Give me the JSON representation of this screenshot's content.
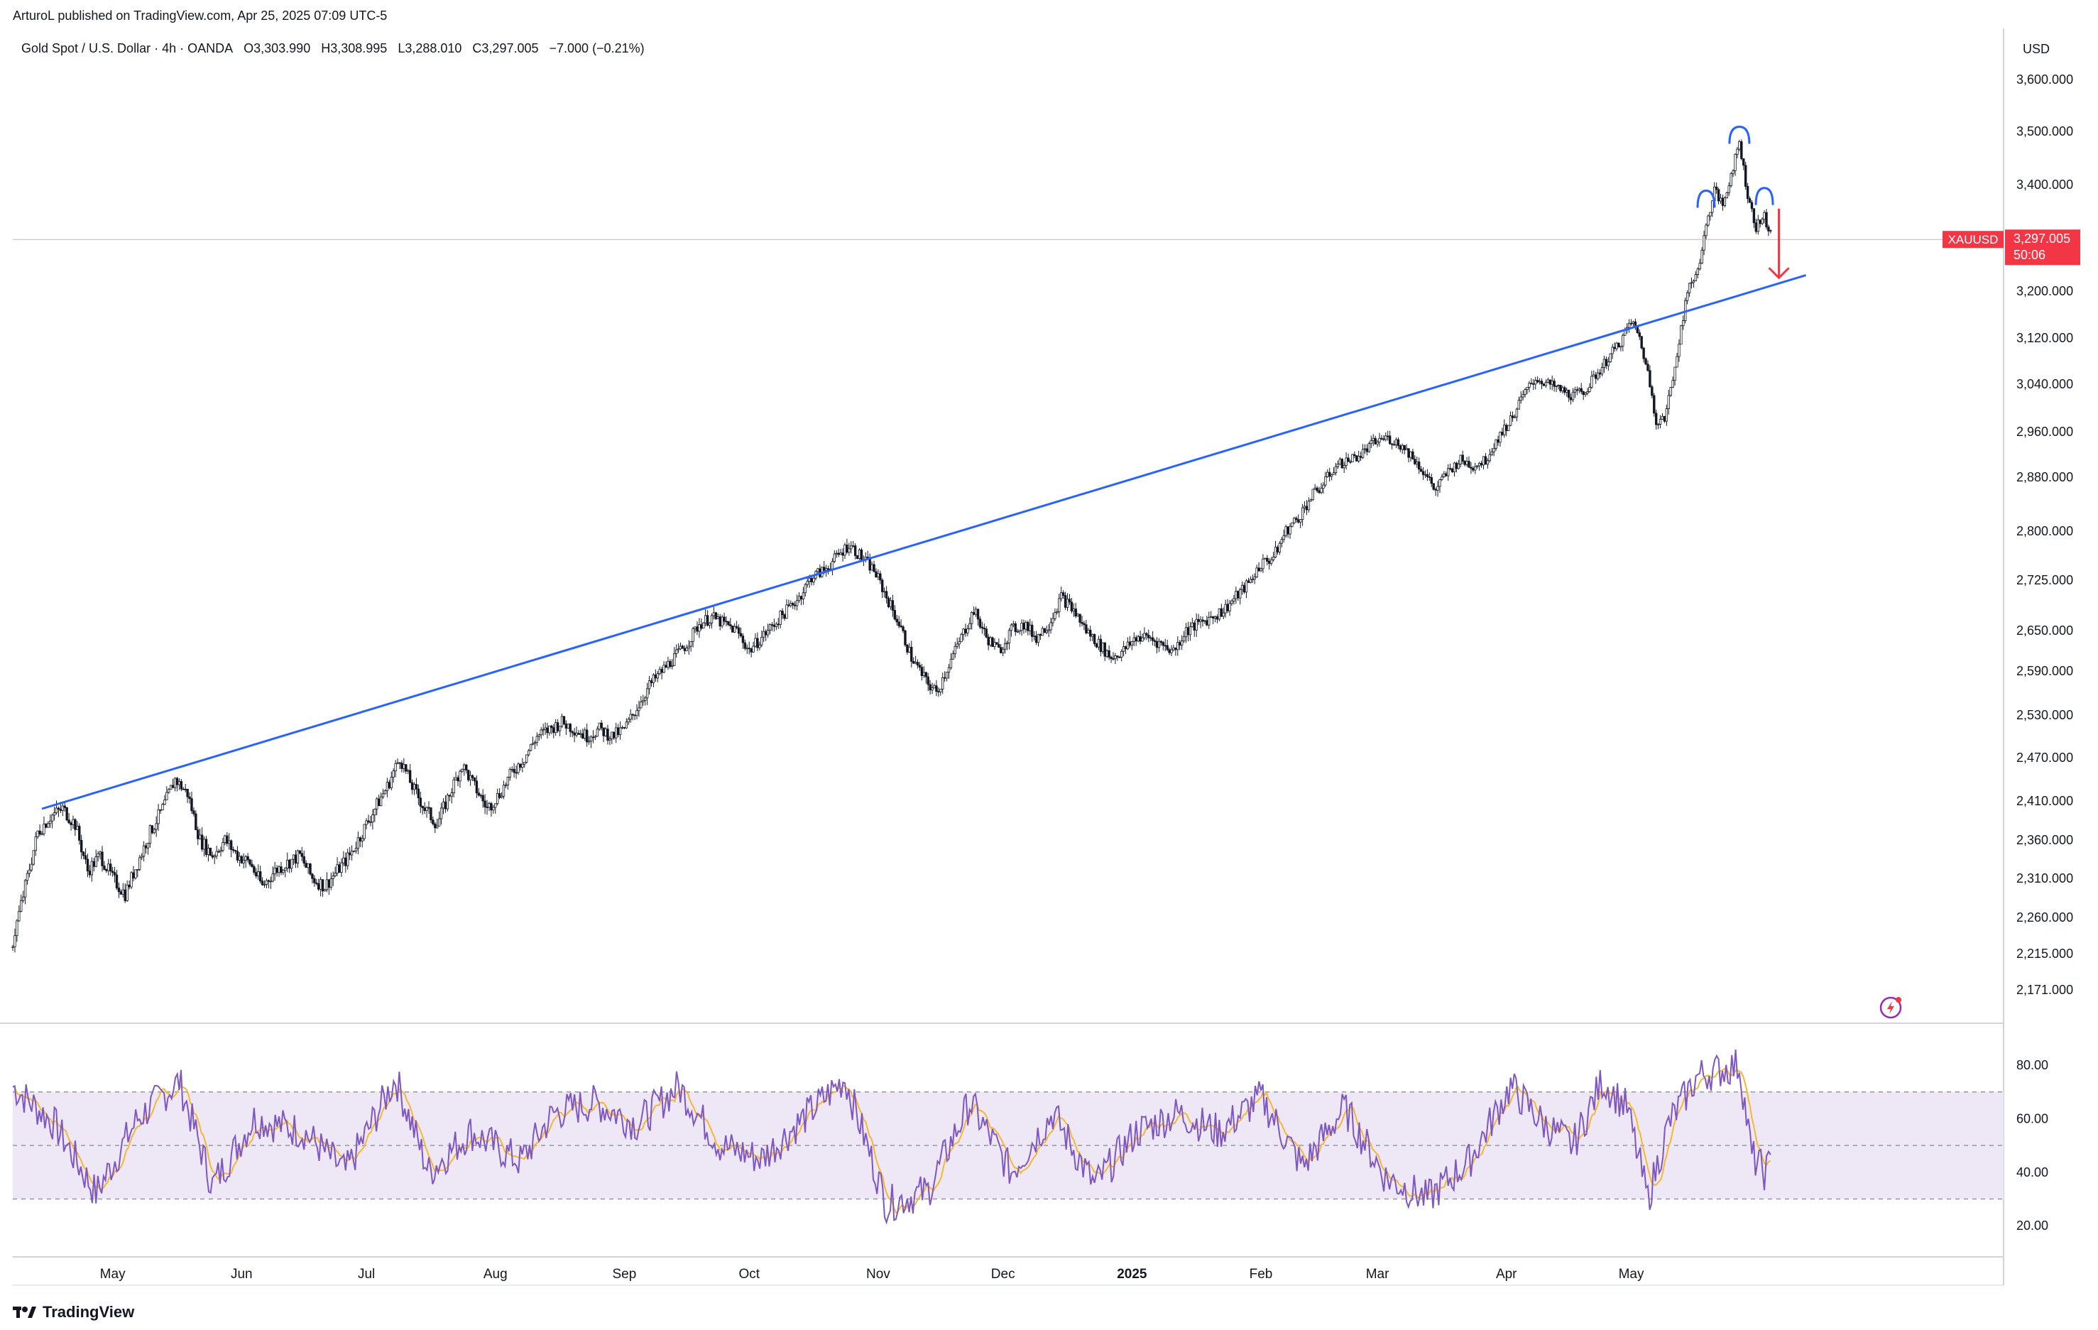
{
  "header": {
    "publisher": "ArturoL published on TradingView.com, Apr 25, 2025 07:09 UTC-5"
  },
  "legend": {
    "symbol": "Gold Spot / U.S. Dollar · 4h · OANDA",
    "open": "O3,303.990",
    "high": "H3,308.995",
    "low": "L3,288.010",
    "close": "C3,297.005",
    "change": "−7.000 (−0.21%)"
  },
  "price_axis": {
    "currency": "USD",
    "badge_symbol": "XAUUSD",
    "badge_price": "3,297.005",
    "badge_countdown": "50:06"
  },
  "footer": {
    "brand": "TradingView"
  },
  "colors": {
    "candle": "#131722",
    "trendline": "#2962ff",
    "rsi": "#7e57c2",
    "rsi_ma": "#f7b731",
    "rsi_band": "#ede7f6",
    "arrow": "#f23645",
    "badge": "#f23645",
    "arc": "#2962ff"
  },
  "chart_data": {
    "type": "candlestick",
    "title": "Gold Spot / U.S. Dollar · 4h · OANDA",
    "price_ticks": [
      3600,
      3500,
      3400,
      3200,
      3120,
      3040,
      2960,
      2880,
      2800,
      2725,
      2650,
      2590,
      2530,
      2470,
      2410,
      2360,
      2310,
      2260,
      2215,
      2171
    ],
    "price_tick_labels": [
      "3,600.000",
      "3,500.000",
      "3,400.000",
      "3,200.000",
      "3,120.000",
      "3,040.000",
      "2,960.000",
      "2,880.000",
      "2,800.000",
      "2,725.000",
      "2,650.000",
      "2,590.000",
      "2,530.000",
      "2,470.000",
      "2,410.000",
      "2,360.000",
      "2,310.000",
      "2,260.000",
      "2,215.000",
      "2,171.000"
    ],
    "x_labels": [
      "May",
      "Jun",
      "Jul",
      "Aug",
      "Sep",
      "Oct",
      "Nov",
      "Dec",
      "2025",
      "Feb",
      "Mar",
      "Apr",
      "May"
    ],
    "x_label_days": [
      24,
      55,
      85,
      116,
      147,
      177,
      208,
      238,
      269,
      300,
      328,
      359,
      389
    ],
    "price_path": [
      [
        0,
        2230
      ],
      [
        3,
        2300
      ],
      [
        6,
        2370
      ],
      [
        9,
        2390
      ],
      [
        12,
        2400
      ],
      [
        15,
        2380
      ],
      [
        18,
        2320
      ],
      [
        21,
        2340
      ],
      [
        24,
        2310
      ],
      [
        27,
        2290
      ],
      [
        30,
        2330
      ],
      [
        33,
        2370
      ],
      [
        36,
        2400
      ],
      [
        39,
        2440
      ],
      [
        42,
        2420
      ],
      [
        45,
        2360
      ],
      [
        48,
        2340
      ],
      [
        51,
        2360
      ],
      [
        54,
        2340
      ],
      [
        57,
        2330
      ],
      [
        60,
        2300
      ],
      [
        63,
        2320
      ],
      [
        66,
        2330
      ],
      [
        69,
        2340
      ],
      [
        72,
        2310
      ],
      [
        75,
        2300
      ],
      [
        78,
        2320
      ],
      [
        81,
        2340
      ],
      [
        84,
        2370
      ],
      [
        87,
        2400
      ],
      [
        90,
        2430
      ],
      [
        93,
        2470
      ],
      [
        96,
        2430
      ],
      [
        99,
        2400
      ],
      [
        102,
        2380
      ],
      [
        105,
        2420
      ],
      [
        108,
        2460
      ],
      [
        111,
        2430
      ],
      [
        114,
        2400
      ],
      [
        117,
        2420
      ],
      [
        120,
        2450
      ],
      [
        123,
        2470
      ],
      [
        126,
        2500
      ],
      [
        129,
        2510
      ],
      [
        132,
        2520
      ],
      [
        135,
        2510
      ],
      [
        138,
        2500
      ],
      [
        141,
        2510
      ],
      [
        144,
        2500
      ],
      [
        147,
        2510
      ],
      [
        150,
        2540
      ],
      [
        153,
        2570
      ],
      [
        156,
        2590
      ],
      [
        159,
        2610
      ],
      [
        162,
        2630
      ],
      [
        165,
        2660
      ],
      [
        168,
        2670
      ],
      [
        171,
        2660
      ],
      [
        174,
        2650
      ],
      [
        177,
        2620
      ],
      [
        180,
        2640
      ],
      [
        183,
        2660
      ],
      [
        186,
        2680
      ],
      [
        189,
        2700
      ],
      [
        192,
        2730
      ],
      [
        195,
        2740
      ],
      [
        198,
        2760
      ],
      [
        201,
        2780
      ],
      [
        204,
        2760
      ],
      [
        207,
        2740
      ],
      [
        210,
        2700
      ],
      [
        213,
        2660
      ],
      [
        216,
        2610
      ],
      [
        219,
        2580
      ],
      [
        222,
        2560
      ],
      [
        225,
        2600
      ],
      [
        228,
        2640
      ],
      [
        231,
        2680
      ],
      [
        234,
        2640
      ],
      [
        237,
        2620
      ],
      [
        240,
        2650
      ],
      [
        243,
        2660
      ],
      [
        246,
        2640
      ],
      [
        249,
        2660
      ],
      [
        252,
        2700
      ],
      [
        255,
        2680
      ],
      [
        258,
        2650
      ],
      [
        261,
        2630
      ],
      [
        264,
        2610
      ],
      [
        267,
        2620
      ],
      [
        270,
        2640
      ],
      [
        273,
        2640
      ],
      [
        276,
        2630
      ],
      [
        279,
        2620
      ],
      [
        282,
        2650
      ],
      [
        285,
        2660
      ],
      [
        288,
        2670
      ],
      [
        291,
        2680
      ],
      [
        294,
        2700
      ],
      [
        297,
        2720
      ],
      [
        300,
        2750
      ],
      [
        303,
        2760
      ],
      [
        306,
        2800
      ],
      [
        309,
        2820
      ],
      [
        312,
        2850
      ],
      [
        315,
        2870
      ],
      [
        318,
        2900
      ],
      [
        321,
        2910
      ],
      [
        324,
        2920
      ],
      [
        327,
        2940
      ],
      [
        330,
        2950
      ],
      [
        333,
        2940
      ],
      [
        336,
        2920
      ],
      [
        339,
        2890
      ],
      [
        342,
        2860
      ],
      [
        345,
        2890
      ],
      [
        348,
        2910
      ],
      [
        351,
        2900
      ],
      [
        354,
        2910
      ],
      [
        357,
        2950
      ],
      [
        360,
        2980
      ],
      [
        363,
        3020
      ],
      [
        366,
        3050
      ],
      [
        369,
        3040
      ],
      [
        372,
        3030
      ],
      [
        375,
        3020
      ],
      [
        378,
        3030
      ],
      [
        381,
        3060
      ],
      [
        384,
        3090
      ],
      [
        387,
        3120
      ],
      [
        389,
        3150
      ],
      [
        391,
        3120
      ],
      [
        393,
        3060
      ],
      [
        395,
        2980
      ],
      [
        397,
        2980
      ],
      [
        399,
        3050
      ],
      [
        401,
        3140
      ],
      [
        403,
        3210
      ],
      [
        405,
        3240
      ],
      [
        407,
        3320
      ],
      [
        409,
        3390
      ],
      [
        411,
        3360
      ],
      [
        413,
        3420
      ],
      [
        415,
        3480
      ],
      [
        417,
        3380
      ],
      [
        419,
        3320
      ],
      [
        421,
        3340
      ],
      [
        423,
        3297
      ]
    ],
    "trendline": {
      "from": [
        7,
        2400
      ],
      "to": [
        431,
        3230
      ]
    },
    "last_price": 3297.005,
    "annotations": [
      "head and shoulders arcs",
      "down arrow"
    ],
    "rsi": {
      "ticks": [
        80,
        60,
        40,
        20
      ],
      "tick_labels": [
        "80.00",
        "60.00",
        "40.00",
        "20.00"
      ],
      "upper_band": 70,
      "mid": 50,
      "lower_band": 30,
      "path": [
        [
          0,
          72
        ],
        [
          10,
          58
        ],
        [
          20,
          32
        ],
        [
          30,
          60
        ],
        [
          40,
          74
        ],
        [
          48,
          35
        ],
        [
          58,
          60
        ],
        [
          70,
          55
        ],
        [
          80,
          40
        ],
        [
          92,
          75
        ],
        [
          100,
          40
        ],
        [
          110,
          55
        ],
        [
          122,
          44
        ],
        [
          130,
          62
        ],
        [
          140,
          66
        ],
        [
          150,
          58
        ],
        [
          160,
          72
        ],
        [
          170,
          50
        ],
        [
          180,
          45
        ],
        [
          190,
          60
        ],
        [
          200,
          75
        ],
        [
          210,
          28
        ],
        [
          220,
          33
        ],
        [
          230,
          66
        ],
        [
          240,
          40
        ],
        [
          250,
          62
        ],
        [
          260,
          35
        ],
        [
          270,
          55
        ],
        [
          280,
          62
        ],
        [
          290,
          55
        ],
        [
          300,
          68
        ],
        [
          310,
          42
        ],
        [
          320,
          64
        ],
        [
          330,
          38
        ],
        [
          340,
          30
        ],
        [
          350,
          44
        ],
        [
          360,
          72
        ],
        [
          368,
          58
        ],
        [
          375,
          50
        ],
        [
          382,
          74
        ],
        [
          388,
          64
        ],
        [
          393,
          30
        ],
        [
          398,
          58
        ],
        [
          405,
          76
        ],
        [
          410,
          78
        ],
        [
          415,
          80
        ],
        [
          418,
          46
        ],
        [
          421,
          40
        ],
        [
          423,
          44
        ]
      ]
    }
  }
}
